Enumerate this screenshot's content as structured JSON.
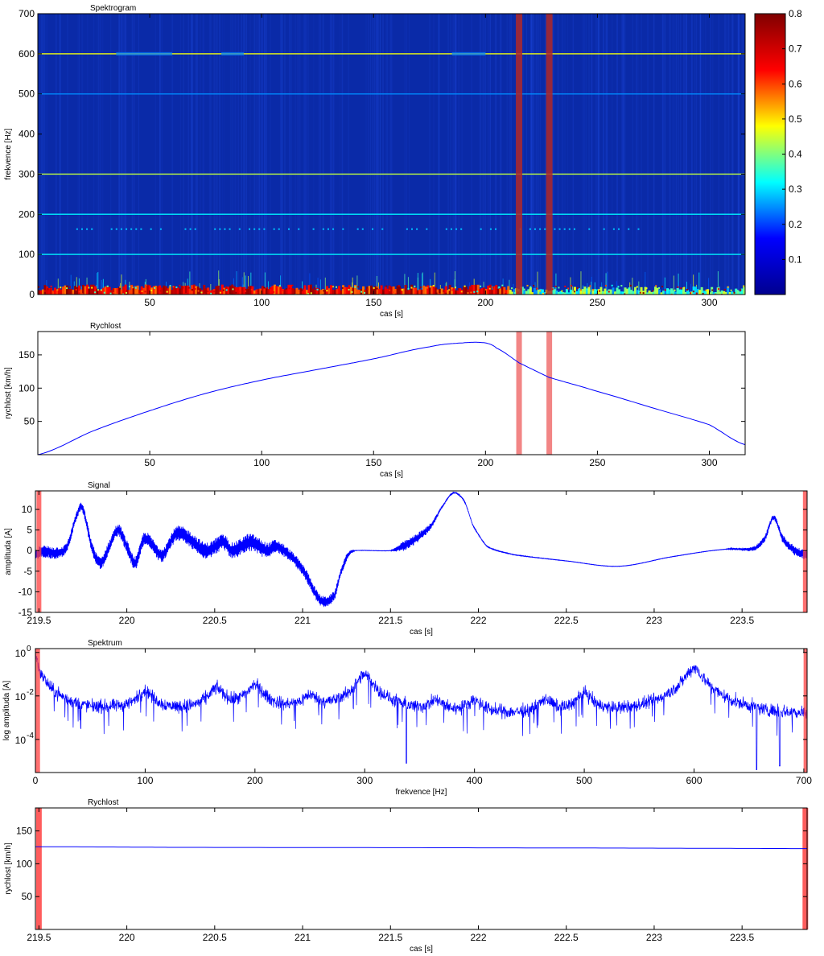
{
  "chart_data": [
    {
      "type": "heatmap",
      "title": "Spektrogram",
      "xlabel": "cas [s]",
      "ylabel": "frekvence [Hz]",
      "xlim": [
        0,
        316
      ],
      "ylim": [
        0,
        700
      ],
      "x_ticks": [
        50,
        100,
        150,
        200,
        250,
        300
      ],
      "y_ticks": [
        0,
        100,
        200,
        300,
        400,
        500,
        600,
        700
      ],
      "colorbar": {
        "min": 0,
        "max": 0.8,
        "ticks": [
          0.1,
          0.2,
          0.3,
          0.4,
          0.5,
          0.6,
          0.7,
          0.8
        ]
      },
      "colormap": [
        "#00008f",
        "#0000ff",
        "#00ffff",
        "#ffff00",
        "#ff0000",
        "#800000"
      ],
      "background_color": "#0a2aa8",
      "harmonic_lines_hz": [
        {
          "f": 600,
          "intensity": 0.55
        },
        {
          "f": 500,
          "intensity": 0.2
        },
        {
          "f": 300,
          "intensity": 0.5
        },
        {
          "f": 200,
          "intensity": 0.3
        },
        {
          "f": 100,
          "intensity": 0.3
        }
      ],
      "dotted_band_hz": 163,
      "low_freq_band_hz": [
        0,
        20
      ],
      "marker_times_s": [
        215,
        228.5
      ],
      "marker_color": "#b02828"
    },
    {
      "type": "line",
      "title": "Rychlost",
      "xlabel": "cas [s]",
      "ylabel": "rychlost [km/h]",
      "xlim": [
        0,
        316
      ],
      "ylim": [
        0,
        185
      ],
      "x_ticks": [
        50,
        100,
        150,
        200,
        250,
        300
      ],
      "y_ticks": [
        50,
        100,
        150
      ],
      "line_color": "#0000ff",
      "marker_times_s": [
        215,
        228.5
      ],
      "marker_color": "#f07070",
      "x": [
        0,
        25,
        50,
        75,
        100,
        125,
        150,
        175,
        190,
        200,
        205,
        215,
        228.5,
        250,
        275,
        300,
        316
      ],
      "y": [
        0,
        36,
        66,
        92,
        112,
        128,
        144,
        162,
        168,
        168,
        160,
        138,
        116,
        95,
        70,
        45,
        15
      ]
    },
    {
      "type": "line",
      "title": "Signal",
      "xlabel": "cas [s]",
      "ylabel": "amplituda [A]",
      "xlim": [
        219.48,
        223.87
      ],
      "ylim": [
        -15,
        14.5
      ],
      "x_ticks": [
        219.5,
        220,
        220.5,
        221,
        221.5,
        222,
        222.5,
        223,
        223.5
      ],
      "x_tick_labels": [
        "219.5",
        "220",
        "220.5",
        "221",
        "221.5",
        "222",
        "222.5",
        "223",
        "223.5"
      ],
      "y_ticks": [
        -15,
        -10,
        -5,
        0,
        5,
        10
      ],
      "line_color": "#0000ff",
      "marker_times_s": [
        219.5,
        223.86
      ],
      "marker_color": "#ff4040",
      "x": [
        219.5,
        219.6,
        219.66,
        219.72,
        219.75,
        219.8,
        219.85,
        219.9,
        219.95,
        220.0,
        220.05,
        220.1,
        220.2,
        220.28,
        220.35,
        220.45,
        220.55,
        220.6,
        220.7,
        220.8,
        220.85,
        220.95,
        221.02,
        221.1,
        221.18,
        221.22,
        221.26,
        221.3,
        221.5,
        221.57,
        221.65,
        221.73,
        221.8,
        221.86,
        221.92,
        221.97,
        222.05,
        222.2,
        222.5,
        222.8,
        223.1,
        223.4,
        223.57,
        223.63,
        223.68,
        223.73,
        223.8,
        223.87
      ],
      "y": [
        0,
        -0.5,
        1,
        9,
        10,
        1,
        -3,
        1,
        5,
        1,
        -3,
        3,
        -1,
        4,
        3,
        0,
        2,
        0,
        2,
        0,
        1,
        -2,
        -6,
        -12,
        -11,
        -5,
        -1,
        0,
        0,
        1,
        3,
        6,
        11,
        14,
        12,
        6,
        1,
        -1,
        -2.5,
        -3.8,
        -1.5,
        0.3,
        0.5,
        3,
        8,
        3,
        0,
        -1
      ],
      "noise_amp": [
        1.5,
        1.5,
        1.2,
        1.0,
        1.0,
        1.5,
        1.5,
        1.5,
        1.5,
        1.6,
        1.6,
        1.6,
        1.8,
        1.8,
        2.0,
        2.0,
        2.0,
        2.0,
        2.2,
        2.0,
        1.6,
        1.4,
        1.5,
        1.4,
        1.2,
        1.0,
        0.8,
        0.05,
        0.05,
        1.2,
        1.2,
        0.8,
        0.3,
        0.3,
        0.2,
        0.15,
        0.1,
        0.08,
        0.05,
        0.05,
        0.05,
        0.05,
        0.6,
        0.8,
        0.6,
        1.0,
        1.2,
        1.2
      ]
    },
    {
      "type": "line",
      "title": "Spektrum",
      "xlabel": "frekvence [Hz]",
      "ylabel": "log amplituda [A]",
      "yscale": "log",
      "xlim": [
        0,
        703
      ],
      "ylim": [
        3e-06,
        1.5
      ],
      "x_ticks": [
        0,
        100,
        200,
        300,
        400,
        500,
        600,
        700
      ],
      "y_ticks": [
        1,
        0.01,
        0.0001
      ],
      "y_tick_mantissa": [
        "10",
        "10",
        "10"
      ],
      "y_tick_exponents": [
        "0",
        "-2",
        "-4"
      ],
      "line_color": "#0000ff",
      "marker_freqs_hz": [
        2,
        702
      ],
      "marker_color": "#ff4040",
      "baseline": [
        [
          0,
          0.9
        ],
        [
          5,
          0.1
        ],
        [
          15,
          0.02
        ],
        [
          30,
          0.006
        ],
        [
          50,
          0.003
        ],
        [
          100,
          0.002
        ],
        [
          200,
          0.0015
        ],
        [
          300,
          0.0018
        ],
        [
          350,
          0.0012
        ],
        [
          450,
          0.0009
        ],
        [
          550,
          0.0008
        ],
        [
          650,
          0.0006
        ],
        [
          703,
          0.001
        ]
      ],
      "peaks": [
        {
          "f": 100,
          "amp": 0.015
        },
        {
          "f": 165,
          "amp": 0.02
        },
        {
          "f": 200,
          "amp": 0.03
        },
        {
          "f": 250,
          "amp": 0.008
        },
        {
          "f": 300,
          "amp": 0.09
        },
        {
          "f": 365,
          "amp": 0.004
        },
        {
          "f": 400,
          "amp": 0.005
        },
        {
          "f": 465,
          "amp": 0.005
        },
        {
          "f": 500,
          "amp": 0.012
        },
        {
          "f": 600,
          "amp": 0.2
        }
      ],
      "dips": [
        {
          "f": 338,
          "amp": 8e-06
        },
        {
          "f": 657,
          "amp": 4e-06
        },
        {
          "f": 678,
          "amp": 6e-06
        }
      ]
    },
    {
      "type": "line",
      "title": "Rychlost",
      "xlabel": "cas [s]",
      "ylabel": "rychlost [km/h]",
      "xlim": [
        219.48,
        223.87
      ],
      "ylim": [
        0,
        185
      ],
      "x_ticks": [
        219.5,
        220,
        220.5,
        221,
        221.5,
        222,
        222.5,
        223,
        223.5
      ],
      "x_tick_labels": [
        "219.5",
        "220",
        "220.5",
        "221",
        "221.5",
        "222",
        "222.5",
        "223",
        "223.5"
      ],
      "y_ticks": [
        50,
        100,
        150
      ],
      "line_color": "#0000ff",
      "marker_times_s": [
        219.5,
        223.86
      ],
      "marker_color": "#ff4040",
      "x": [
        219.48,
        219.95,
        220.25,
        221.5,
        222.6,
        223.25,
        223.87
      ],
      "y": [
        126,
        125.5,
        125,
        124.5,
        124,
        123.5,
        123
      ]
    }
  ]
}
